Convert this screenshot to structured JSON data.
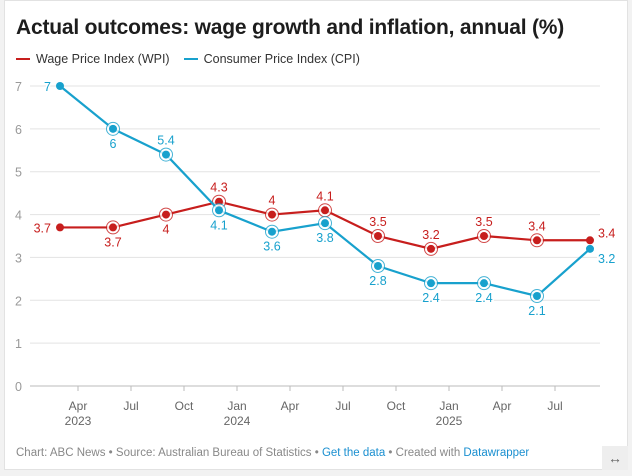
{
  "title": "Actual outcomes: wage growth and inflation, annual (%)",
  "footer": {
    "chart_credit": "Chart: ABC News",
    "source": "Source: Australian Bureau of Statistics",
    "get_data": "Get the data",
    "created_with": "Created with",
    "datawrapper": "Datawrapper",
    "sep": " • "
  },
  "expand_icon": "↔",
  "colors": {
    "wpi": "#c71e1d",
    "cpi": "#18a1cd"
  },
  "chart_data": {
    "type": "line",
    "title": "Actual outcomes: wage growth and inflation, annual (%)",
    "xlabel": "",
    "ylabel": "",
    "ylim": [
      0,
      7
    ],
    "yticks": [
      0,
      1,
      2,
      3,
      4,
      5,
      6,
      7
    ],
    "x": [
      "Mar 2023",
      "Jun 2023",
      "Sep 2023",
      "Dec 2023",
      "Mar 2024",
      "Jun 2024",
      "Sep 2024",
      "Dec 2024",
      "Mar 2025",
      "Jun 2025",
      "Sep 2025"
    ],
    "xticks": [
      {
        "label": "Apr",
        "year": "2023"
      },
      {
        "label": "Jul",
        "year": ""
      },
      {
        "label": "Oct",
        "year": ""
      },
      {
        "label": "Jan",
        "year": "2024"
      },
      {
        "label": "Apr",
        "year": ""
      },
      {
        "label": "Jul",
        "year": ""
      },
      {
        "label": "Oct",
        "year": ""
      },
      {
        "label": "Jan",
        "year": "2025"
      },
      {
        "label": "Apr",
        "year": ""
      },
      {
        "label": "Jul",
        "year": ""
      }
    ],
    "grid": true,
    "legend": "top-left",
    "series": [
      {
        "name": "Wage Price Index (WPI)",
        "key": "wpi",
        "values": [
          3.7,
          3.7,
          4,
          4.3,
          4,
          4.1,
          3.5,
          3.2,
          3.5,
          3.4,
          3.4
        ],
        "label_pos": [
          "left",
          "below",
          "below",
          "above",
          "above",
          "above",
          "above",
          "above",
          "above",
          "above",
          "right"
        ]
      },
      {
        "name": "Consumer Price Index (CPI)",
        "key": "cpi",
        "values": [
          7,
          6,
          5.4,
          4.1,
          3.6,
          3.8,
          2.8,
          2.4,
          2.4,
          2.1,
          3.2
        ],
        "label_pos": [
          "left",
          "below",
          "above",
          "below",
          "below",
          "below",
          "below",
          "below",
          "below",
          "below",
          "right"
        ]
      }
    ]
  }
}
